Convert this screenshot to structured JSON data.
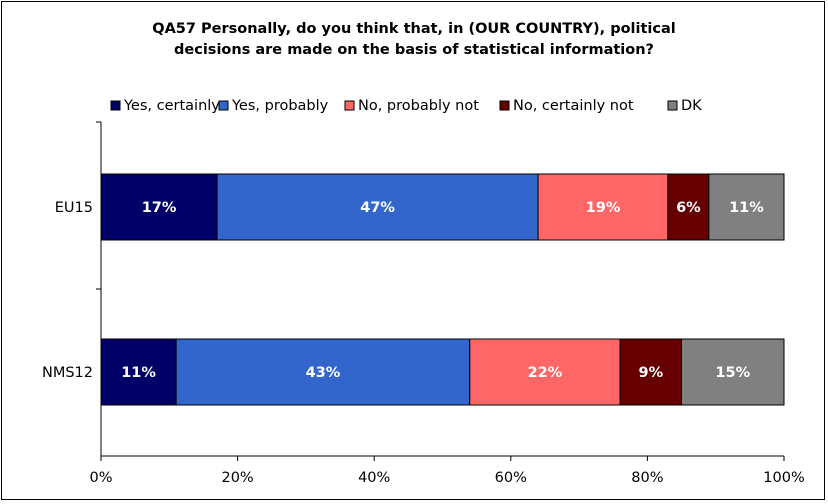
{
  "chart_data": {
    "type": "bar",
    "orientation": "horizontal",
    "stacked": true,
    "title_lines": [
      "QA57 Personally, do you think that, in (OUR COUNTRY), political",
      "decisions are made on the basis of statistical information?"
    ],
    "categories": [
      "EU15",
      "NMS12"
    ],
    "series": [
      {
        "name": "Yes, certainly",
        "color": "#000066",
        "values": [
          17,
          11
        ],
        "labels": [
          "17%",
          "11%"
        ]
      },
      {
        "name": "Yes, probably",
        "color": "#3366cc",
        "values": [
          47,
          43
        ],
        "labels": [
          "47%",
          "43%"
        ]
      },
      {
        "name": "No, probably not",
        "color": "#ff6666",
        "values": [
          19,
          22
        ],
        "labels": [
          "19%",
          "22%"
        ]
      },
      {
        "name": "No, certainly not",
        "color": "#660000",
        "values": [
          6,
          9
        ],
        "labels": [
          "6%",
          "9%"
        ]
      },
      {
        "name": "DK",
        "color": "#808080",
        "values": [
          11,
          15
        ],
        "labels": [
          "11%",
          "15%"
        ]
      }
    ],
    "xlim": [
      0,
      100
    ],
    "xticks": [
      "0%",
      "20%",
      "40%",
      "60%",
      "80%",
      "100%"
    ],
    "grid": false,
    "legend_position": "top"
  }
}
